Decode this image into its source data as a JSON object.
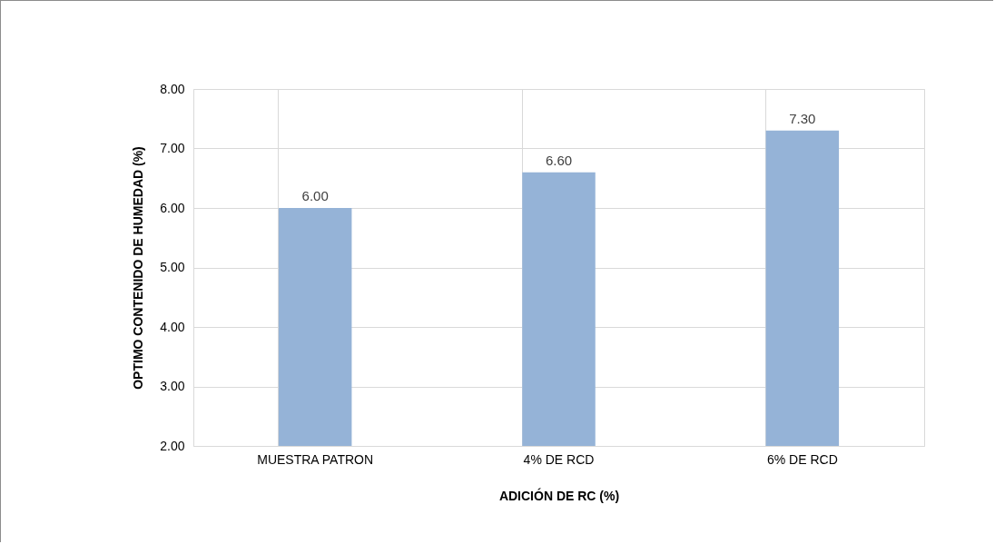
{
  "chart_data": {
    "type": "bar",
    "xlabel": "ADICIÓN DE RC (%)",
    "ylabel": "OPTIMO CONTENIDO DE HUMEDAD (%)",
    "categories": [
      "MUESTRA PATRON",
      "4% DE RCD",
      "6% DE RCD"
    ],
    "values": [
      6.0,
      6.6,
      7.3
    ],
    "color": "#95b3d7",
    "value_labels": [
      "6.00",
      "6.60",
      "7.30"
    ],
    "ylim": [
      2,
      8
    ],
    "yticks": [
      {
        "value": 2,
        "label": "2.00"
      },
      {
        "value": 3,
        "label": "3.00"
      },
      {
        "value": 4,
        "label": "4.00"
      },
      {
        "value": 5,
        "label": "5.00"
      },
      {
        "value": 6,
        "label": "6.00"
      },
      {
        "value": 7,
        "label": "7.00"
      },
      {
        "value": 8,
        "label": "8.00"
      }
    ],
    "grid": true
  }
}
